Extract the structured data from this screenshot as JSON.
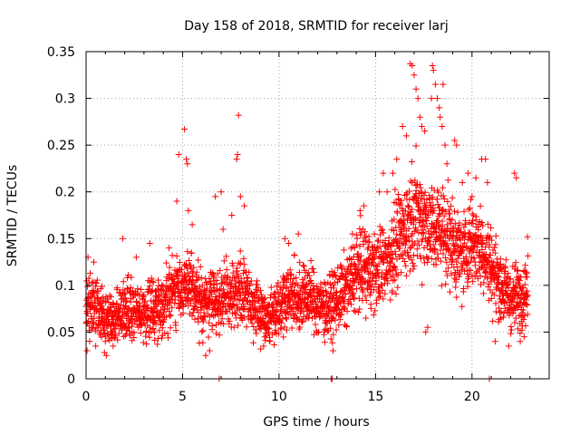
{
  "chart_data": {
    "type": "scatter",
    "title": "Day 158 of 2018, SRMTID for receiver larj",
    "xlabel": "GPS time / hours",
    "ylabel": "SRMTID / TECUs",
    "xlim": [
      0,
      24
    ],
    "ylim": [
      0,
      0.35
    ],
    "x_ticks": [
      0,
      5,
      10,
      15,
      20
    ],
    "x_tick_labels": [
      "0",
      "5",
      "10",
      "15",
      "20"
    ],
    "y_ticks": [
      0,
      0.05,
      0.1,
      0.15,
      0.2,
      0.25,
      0.3,
      0.35
    ],
    "y_tick_labels": [
      "0",
      "0.05",
      "0.1",
      "0.15",
      "0.2",
      "0.25",
      "0.3",
      "0.35"
    ],
    "grid": true,
    "marker": "+",
    "marker_color": "#ff0000",
    "series": [
      {
        "name": "SRMTID",
        "trend": [
          [
            0.0,
            0.08
          ],
          [
            0.5,
            0.075
          ],
          [
            1.0,
            0.065
          ],
          [
            1.5,
            0.06
          ],
          [
            2.0,
            0.075
          ],
          [
            2.5,
            0.07
          ],
          [
            3.0,
            0.07
          ],
          [
            3.5,
            0.075
          ],
          [
            4.0,
            0.08
          ],
          [
            4.5,
            0.095
          ],
          [
            5.0,
            0.1
          ],
          [
            5.5,
            0.095
          ],
          [
            6.0,
            0.08
          ],
          [
            6.5,
            0.085
          ],
          [
            7.0,
            0.085
          ],
          [
            7.5,
            0.09
          ],
          [
            8.0,
            0.095
          ],
          [
            8.5,
            0.085
          ],
          [
            9.0,
            0.07
          ],
          [
            9.5,
            0.065
          ],
          [
            10.0,
            0.08
          ],
          [
            10.5,
            0.09
          ],
          [
            11.0,
            0.085
          ],
          [
            11.5,
            0.09
          ],
          [
            12.0,
            0.08
          ],
          [
            12.5,
            0.075
          ],
          [
            13.0,
            0.085
          ],
          [
            13.5,
            0.095
          ],
          [
            14.0,
            0.115
          ],
          [
            14.5,
            0.12
          ],
          [
            15.0,
            0.115
          ],
          [
            15.5,
            0.125
          ],
          [
            16.0,
            0.14
          ],
          [
            16.5,
            0.16
          ],
          [
            17.0,
            0.18
          ],
          [
            17.5,
            0.17
          ],
          [
            18.0,
            0.16
          ],
          [
            18.5,
            0.16
          ],
          [
            19.0,
            0.145
          ],
          [
            19.5,
            0.13
          ],
          [
            20.0,
            0.15
          ],
          [
            20.5,
            0.14
          ],
          [
            21.0,
            0.12
          ],
          [
            21.5,
            0.1
          ],
          [
            22.0,
            0.085
          ],
          [
            22.5,
            0.09
          ],
          [
            22.9,
            0.1
          ]
        ],
        "highlights": [
          [
            0.05,
            0.03
          ],
          [
            0.1,
            0.13
          ],
          [
            0.4,
            0.125
          ],
          [
            1.05,
            0.025
          ],
          [
            1.4,
            0.035
          ],
          [
            1.9,
            0.15
          ],
          [
            2.6,
            0.13
          ],
          [
            3.3,
            0.145
          ],
          [
            4.3,
            0.14
          ],
          [
            4.7,
            0.19
          ],
          [
            4.8,
            0.24
          ],
          [
            5.1,
            0.267
          ],
          [
            5.2,
            0.235
          ],
          [
            5.25,
            0.23
          ],
          [
            5.3,
            0.18
          ],
          [
            5.5,
            0.165
          ],
          [
            6.2,
            0.025
          ],
          [
            6.4,
            0.03
          ],
          [
            6.7,
            0.195
          ],
          [
            7.0,
            0.2
          ],
          [
            7.1,
            0.16
          ],
          [
            7.55,
            0.175
          ],
          [
            7.8,
            0.235
          ],
          [
            7.85,
            0.24
          ],
          [
            7.9,
            0.282
          ],
          [
            8.0,
            0.195
          ],
          [
            8.2,
            0.185
          ],
          [
            9.2,
            0.035
          ],
          [
            10.3,
            0.15
          ],
          [
            10.5,
            0.145
          ],
          [
            11.0,
            0.155
          ],
          [
            12.8,
            0.03
          ],
          [
            13.8,
            0.155
          ],
          [
            14.2,
            0.18
          ],
          [
            14.4,
            0.185
          ],
          [
            14.5,
            0.065
          ],
          [
            15.2,
            0.2
          ],
          [
            15.4,
            0.22
          ],
          [
            15.6,
            0.2
          ],
          [
            15.9,
            0.22
          ],
          [
            16.1,
            0.235
          ],
          [
            16.4,
            0.27
          ],
          [
            16.6,
            0.26
          ],
          [
            16.8,
            0.337
          ],
          [
            16.9,
            0.335
          ],
          [
            17.0,
            0.325
          ],
          [
            17.1,
            0.31
          ],
          [
            17.2,
            0.3
          ],
          [
            17.3,
            0.28
          ],
          [
            17.4,
            0.27
          ],
          [
            17.55,
            0.265
          ],
          [
            17.6,
            0.05
          ],
          [
            17.7,
            0.055
          ],
          [
            17.9,
            0.3
          ],
          [
            17.95,
            0.335
          ],
          [
            18.0,
            0.33
          ],
          [
            18.1,
            0.315
          ],
          [
            18.2,
            0.3
          ],
          [
            18.3,
            0.29
          ],
          [
            18.35,
            0.28
          ],
          [
            18.45,
            0.27
          ],
          [
            18.5,
            0.315
          ],
          [
            18.6,
            0.25
          ],
          [
            18.7,
            0.23
          ],
          [
            19.1,
            0.255
          ],
          [
            19.2,
            0.25
          ],
          [
            19.5,
            0.21
          ],
          [
            19.8,
            0.22
          ],
          [
            20.0,
            0.195
          ],
          [
            20.2,
            0.215
          ],
          [
            20.5,
            0.235
          ],
          [
            20.7,
            0.235
          ],
          [
            20.8,
            0.21
          ],
          [
            21.2,
            0.04
          ],
          [
            21.5,
            0.065
          ],
          [
            21.9,
            0.035
          ],
          [
            22.2,
            0.22
          ],
          [
            22.3,
            0.215
          ],
          [
            22.5,
            0.04
          ],
          [
            22.7,
            0.045
          ]
        ],
        "zero_values_x": [
          6.9,
          12.7,
          12.75,
          20.9
        ]
      }
    ]
  }
}
